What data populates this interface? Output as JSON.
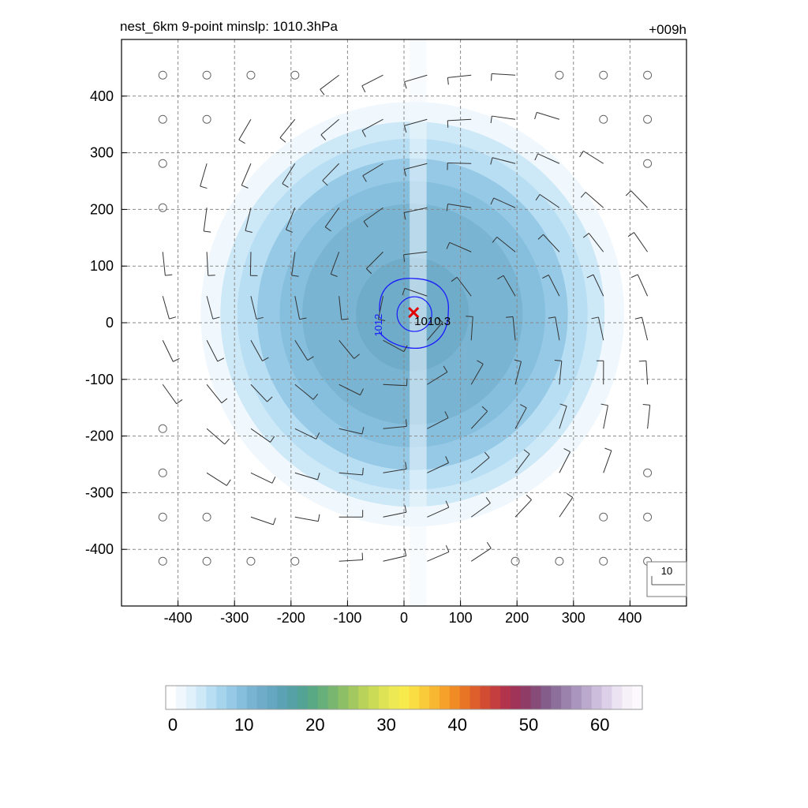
{
  "chart_data": {
    "type": "heatmap",
    "title": "nest_6km  9-point minslp: 1010.3hPa",
    "forecast_hour": "+009h",
    "xlim": [
      -500,
      500
    ],
    "ylim": [
      -500,
      500
    ],
    "x_ticks": [
      -400,
      -300,
      -200,
      -100,
      0,
      100,
      200,
      300,
      400
    ],
    "y_ticks": [
      400,
      300,
      200,
      100,
      0,
      -100,
      -200,
      -300,
      -400
    ],
    "grid": true,
    "shading": {
      "center": [
        15,
        15
      ],
      "shape": "circular",
      "levels": [
        {
          "radius": 375,
          "value": 2
        },
        {
          "radius": 340,
          "value": 4
        },
        {
          "radius": 310,
          "value": 6
        },
        {
          "radius": 275,
          "value": 8
        },
        {
          "radius": 235,
          "value": 10
        },
        {
          "radius": 195,
          "value": 11
        },
        {
          "radius": 145,
          "value": 12
        },
        {
          "radius": 100,
          "value": 13
        }
      ]
    },
    "pressure_contours": [
      {
        "label": "1012",
        "value": 1012
      }
    ],
    "min_pressure": {
      "value": "1010.3",
      "x": 17,
      "y": 18,
      "marker": "x"
    },
    "wind_vectors": {
      "spacing_km": 78,
      "reference_label": "10",
      "pattern": "cyclonic"
    },
    "colorbar": {
      "ticks": [
        "0",
        "10",
        "20",
        "30",
        "40",
        "50",
        "60"
      ],
      "range": [
        0,
        66
      ],
      "colors": [
        "#ffffff",
        "#f1f8fd",
        "#e0f1fb",
        "#cde8f7",
        "#b8def3",
        "#a7d4ed",
        "#95c9e6",
        "#86bfdd",
        "#79b4d2",
        "#6facc9",
        "#65a7c1",
        "#5ca2b5",
        "#56a1a6",
        "#54a495",
        "#5aa985",
        "#67b07b",
        "#79b770",
        "#8dbf66",
        "#a2c85f",
        "#b8d25a",
        "#cbdb56",
        "#dde355",
        "#ede954",
        "#f7ea4c",
        "#f9dd43",
        "#f9cb3a",
        "#f8b731",
        "#f5a12a",
        "#f08b26",
        "#e87426",
        "#de5f2b",
        "#d24c33",
        "#c43e3f",
        "#b2344c",
        "#9f3458",
        "#8f3d66",
        "#864b77",
        "#855d8a",
        "#8d6f9c",
        "#9a82ad",
        "#a995bd",
        "#baa9cc",
        "#cbbddb",
        "#dcd0e8",
        "#ece3f2",
        "#f6f0f9",
        "#fbf9fd"
      ]
    }
  }
}
